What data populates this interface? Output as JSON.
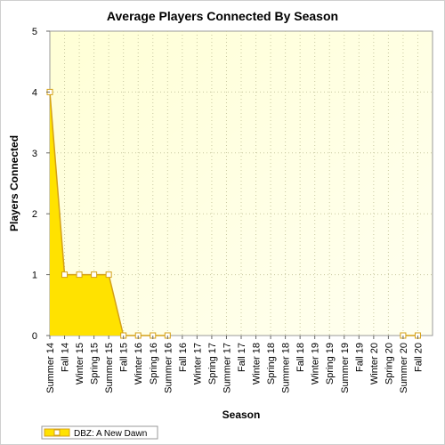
{
  "chart_data": {
    "type": "area",
    "title": "Average Players Connected By Season",
    "xlabel": "Season",
    "ylabel": "Players Connected",
    "ylim": [
      0,
      5
    ],
    "yticks": [
      0,
      1,
      2,
      3,
      4,
      5
    ],
    "grid": true,
    "legend_position": "bottom-left",
    "categories": [
      "Summer 14",
      "Fall 14",
      "Winter 15",
      "Spring 15",
      "Summer 15",
      "Fall 15",
      "Winter 16",
      "Spring 16",
      "Summer 16",
      "Fall 16",
      "Winter 17",
      "Spring 17",
      "Summer 17",
      "Fall 17",
      "Winter 18",
      "Spring 18",
      "Summer 18",
      "Fall 18",
      "Winter 19",
      "Spring 19",
      "Summer 19",
      "Fall 19",
      "Winter 20",
      "Spring 20",
      "Summer 20",
      "Fall 20"
    ],
    "series": [
      {
        "name": "DBZ: A New Dawn",
        "color": "#ffe200",
        "line_color": "#d4a017",
        "values": [
          4,
          1,
          1,
          1,
          1,
          0,
          0,
          0,
          0,
          null,
          null,
          null,
          null,
          null,
          null,
          null,
          null,
          null,
          null,
          null,
          null,
          null,
          null,
          null,
          0,
          0
        ]
      }
    ]
  },
  "colors": {
    "plot_bg_top": "#ffffd6",
    "plot_bg_bottom": "#fffff0",
    "grid": "#c8c8a0"
  }
}
